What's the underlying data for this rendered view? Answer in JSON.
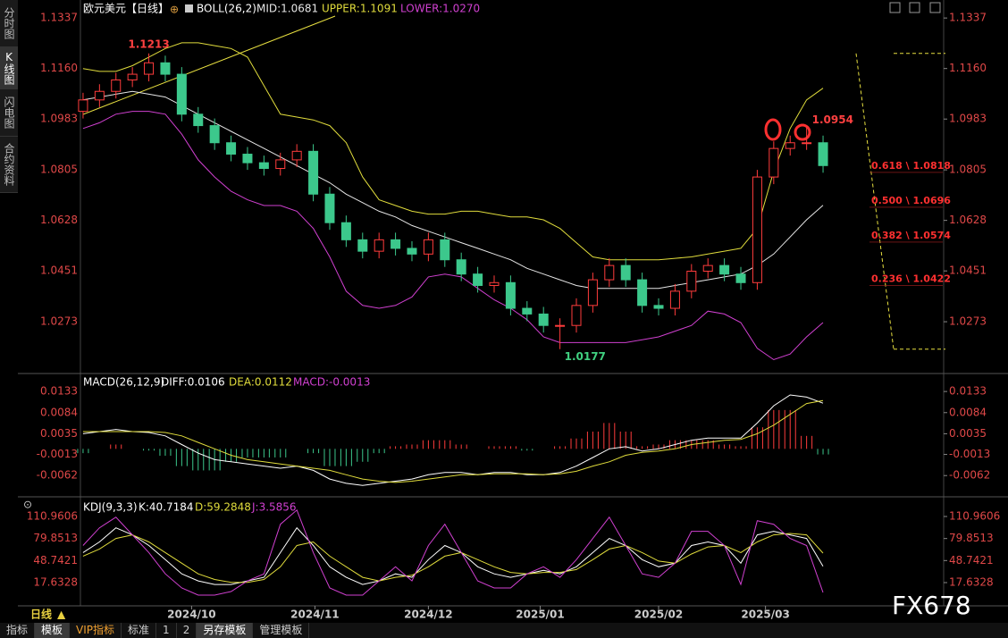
{
  "ui": {
    "sidebar": [
      "分时图",
      "K线图",
      "闪电图",
      "合约资料"
    ],
    "period": "日线",
    "tabs": [
      "指标",
      "模板",
      "VIP指标",
      "标准",
      "1",
      "2",
      "另存模板",
      "管理模板"
    ],
    "watermark": "FX678"
  },
  "chart_data": [
    {
      "type": "candlestick",
      "title": "欧元美元【日线】",
      "indicator": "BOLL(26,2)",
      "categories": [
        null,
        null,
        null,
        null,
        null,
        null,
        null,
        null,
        null,
        null,
        null,
        null,
        null,
        null,
        null,
        null,
        null,
        null,
        null,
        null,
        null,
        null,
        null,
        null,
        null,
        null,
        null,
        null,
        null,
        null,
        null,
        null,
        null,
        null,
        null,
        null,
        null,
        null,
        null,
        null,
        null,
        null,
        null,
        null,
        null,
        null
      ],
      "open": [
        1.101,
        1.105,
        1.108,
        1.112,
        1.114,
        1.118,
        1.114,
        1.1,
        1.096,
        1.09,
        1.086,
        1.083,
        1.081,
        1.084,
        1.087,
        1.072,
        1.062,
        1.056,
        1.052,
        1.056,
        1.053,
        1.051,
        1.056,
        1.049,
        1.044,
        1.04,
        1.041,
        1.032,
        1.03,
        1.026,
        1.026,
        1.033,
        1.042,
        1.047,
        1.042,
        1.033,
        1.032,
        1.038,
        1.045,
        1.047,
        1.044,
        1.041,
        1.078,
        1.088,
        1.09,
        1.09
      ],
      "high": [
        1.1075,
        1.1105,
        1.1145,
        1.1165,
        1.1213,
        1.1205,
        1.1165,
        1.1025,
        1.0985,
        1.0925,
        1.0885,
        1.0855,
        1.0865,
        1.0895,
        1.0895,
        1.0745,
        1.0645,
        1.0585,
        1.0585,
        1.0585,
        1.0555,
        1.0585,
        1.0585,
        1.0515,
        1.0465,
        1.0435,
        1.0435,
        1.0345,
        1.0325,
        1.0285,
        1.0355,
        1.0445,
        1.0495,
        1.0495,
        1.0445,
        1.0355,
        1.0405,
        1.0475,
        1.0495,
        1.0495,
        1.0465,
        1.0805,
        1.0905,
        1.0925,
        1.0954,
        1.0925
      ],
      "low": [
        1.0985,
        1.1025,
        1.1055,
        1.1095,
        1.1115,
        1.1115,
        1.0975,
        1.0935,
        1.0875,
        1.0835,
        1.0805,
        1.0785,
        1.0785,
        1.0815,
        1.0695,
        1.0595,
        1.0535,
        1.0495,
        1.0495,
        1.0505,
        1.0485,
        1.0485,
        1.0465,
        1.0415,
        1.0375,
        1.0375,
        1.0295,
        1.0275,
        1.0235,
        1.0177,
        1.0235,
        1.0305,
        1.0395,
        1.0395,
        1.0305,
        1.0295,
        1.0295,
        1.0355,
        1.0425,
        1.0415,
        1.0385,
        1.0385,
        1.0755,
        1.0855,
        1.0875,
        1.0795
      ],
      "close": [
        1.105,
        1.108,
        1.112,
        1.114,
        1.118,
        1.114,
        1.1,
        1.096,
        1.09,
        1.086,
        1.083,
        1.081,
        1.084,
        1.087,
        1.072,
        1.062,
        1.056,
        1.052,
        1.056,
        1.053,
        1.051,
        1.056,
        1.049,
        1.044,
        1.04,
        1.041,
        1.032,
        1.03,
        1.026,
        1.026,
        1.033,
        1.042,
        1.047,
        1.042,
        1.033,
        1.032,
        1.038,
        1.045,
        1.047,
        1.044,
        1.041,
        1.078,
        1.088,
        1.09,
        1.09,
        1.082
      ],
      "up_color": "#ff3c3c",
      "down_color": "#3cc88c",
      "series": [
        {
          "name": "MID:1.0681",
          "color": "#e6e6e6",
          "values": [
            1.105,
            1.106,
            1.107,
            1.108,
            1.107,
            1.106,
            1.103,
            1.1,
            1.097,
            1.094,
            1.091,
            1.088,
            1.085,
            1.082,
            1.079,
            1.076,
            1.072,
            1.069,
            1.066,
            1.064,
            1.061,
            1.059,
            1.057,
            1.055,
            1.053,
            1.051,
            1.049,
            1.046,
            1.044,
            1.042,
            1.04,
            1.039,
            1.039,
            1.039,
            1.039,
            1.039,
            1.04,
            1.041,
            1.042,
            1.043,
            1.044,
            1.047,
            1.051,
            1.057,
            1.063,
            1.0681
          ]
        },
        {
          "name": "UPPER:1.1091",
          "color": "#e0dc3c",
          "values": [
            1.116,
            1.115,
            1.115,
            1.117,
            1.12,
            1.123,
            1.125,
            1.125,
            1.124,
            1.123,
            1.12,
            1.11,
            1.1,
            1.099,
            1.098,
            1.096,
            1.09,
            1.078,
            1.07,
            1.068,
            1.066,
            1.065,
            1.065,
            1.066,
            1.066,
            1.065,
            1.064,
            1.064,
            1.063,
            1.06,
            1.055,
            1.05,
            1.049,
            1.049,
            1.049,
            1.049,
            1.0495,
            1.05,
            1.051,
            1.052,
            1.053,
            1.06,
            1.08,
            1.095,
            1.105,
            1.1091
          ]
        },
        {
          "name": "LOWER:1.0270",
          "color": "#d040d0",
          "values": [
            1.095,
            1.097,
            1.1,
            1.101,
            1.101,
            1.1,
            1.093,
            1.084,
            1.078,
            1.073,
            1.07,
            1.068,
            1.068,
            1.066,
            1.06,
            1.05,
            1.038,
            1.033,
            1.032,
            1.033,
            1.036,
            1.043,
            1.044,
            1.043,
            1.039,
            1.035,
            1.032,
            1.028,
            1.022,
            1.02,
            1.02,
            1.02,
            1.02,
            1.02,
            1.021,
            1.022,
            1.024,
            1.026,
            1.031,
            1.03,
            1.027,
            1.018,
            1.014,
            1.016,
            1.022,
            1.027
          ]
        }
      ],
      "xlim": [
        -0.16,
        52.28
      ],
      "ylim": [
        1.0101,
        1.1375
      ],
      "yticks": [
        1.1337,
        {
          "value": 1.116,
          "label": "1.1160"
        },
        1.0983,
        1.0805,
        1.0628,
        1.0451,
        1.0273
      ],
      "fib_levels": [
        {
          "value": 1.0818,
          "label": "0.618 \\ 1.0818"
        },
        {
          "value": 1.0696,
          "label": "0.500 \\ 1.0696"
        },
        {
          "value": 1.0574,
          "label": "0.382 \\ 1.0574"
        },
        {
          "value": 1.0422,
          "label": "0.236 \\ 1.0422"
        }
      ]
    },
    {
      "type": "macd",
      "title": "MACD(26,12,9)",
      "ylim": [
        -0.0103,
        0.0154
      ],
      "yticks": [
        0.0133,
        0.0084,
        0.0035,
        -0.0013,
        -0.0062
      ],
      "series": [
        {
          "name": "DIFF:0.0106",
          "color": "#ffffff",
          "values": [
            0.0035,
            0.004,
            0.0045,
            0.004,
            0.0038,
            0.003,
            0.001,
            -0.001,
            -0.0025,
            -0.003,
            -0.0035,
            -0.004,
            -0.0045,
            -0.004,
            -0.005,
            -0.007,
            -0.008,
            -0.0085,
            -0.008,
            -0.0075,
            -0.007,
            -0.006,
            -0.0055,
            -0.0055,
            -0.006,
            -0.0055,
            -0.0055,
            -0.006,
            -0.006,
            -0.0055,
            -0.004,
            -0.002,
            0.0,
            0.0005,
            -0.0005,
            0.0,
            0.001,
            0.002,
            0.0025,
            0.0025,
            0.0025,
            0.006,
            0.01,
            0.0125,
            0.012,
            0.0106
          ]
        },
        {
          "name": "DEA:0.0112",
          "color": "#e0dc3c",
          "values": [
            0.004,
            0.004,
            0.004,
            0.004,
            0.004,
            0.0038,
            0.003,
            0.0015,
            0.0,
            -0.0015,
            -0.0025,
            -0.003,
            -0.0035,
            -0.004,
            -0.0045,
            -0.005,
            -0.006,
            -0.007,
            -0.0075,
            -0.0078,
            -0.0075,
            -0.007,
            -0.0065,
            -0.006,
            -0.006,
            -0.0058,
            -0.0058,
            -0.0058,
            -0.006,
            -0.0058,
            -0.0052,
            -0.004,
            -0.003,
            -0.0015,
            -0.0008,
            -0.0005,
            0.0,
            0.001,
            0.0015,
            0.002,
            0.0022,
            0.0035,
            0.0055,
            0.008,
            0.0105,
            0.0112
          ]
        },
        {
          "name": "MACD:-0.0013",
          "color": "#d040d0",
          "values": [
            -0.001,
            0.0,
            0.001,
            0.0,
            -0.0004,
            -0.0016,
            -0.004,
            -0.005,
            -0.005,
            -0.003,
            -0.002,
            -0.002,
            -0.002,
            0.0,
            -0.001,
            -0.004,
            -0.004,
            -0.003,
            -0.001,
            0.0006,
            0.001,
            0.002,
            0.002,
            0.001,
            0.0,
            0.0006,
            0.0006,
            -0.0004,
            0.0,
            0.0006,
            0.0024,
            0.004,
            0.006,
            0.004,
            0.0006,
            0.001,
            0.002,
            0.002,
            0.002,
            0.001,
            0.0006,
            0.005,
            0.009,
            0.009,
            0.003,
            -0.0013
          ]
        }
      ]
    },
    {
      "type": "kdj",
      "title": "KDJ(9,3,3)",
      "ylim": [
        -11.4,
        129.9
      ],
      "yticks": [
        110.9606,
        79.8513,
        48.7421,
        17.6328
      ],
      "xticks": [
        {
          "value": 6.6,
          "label": "2024/10"
        },
        {
          "value": 14.1,
          "label": "2024/11"
        },
        {
          "value": 21.0,
          "label": "2024/12"
        },
        {
          "value": 27.8,
          "label": "2025/01"
        },
        {
          "value": 35.0,
          "label": "2025/02"
        },
        {
          "value": 41.5,
          "label": "2025/03"
        }
      ],
      "series": [
        {
          "name": "K:40.7184",
          "color": "#ffffff",
          "values": [
            60,
            75,
            95,
            85,
            70,
            50,
            30,
            20,
            15,
            15,
            20,
            25,
            60,
            95,
            70,
            40,
            25,
            15,
            20,
            30,
            25,
            50,
            70,
            60,
            40,
            30,
            25,
            30,
            35,
            30,
            40,
            60,
            80,
            70,
            50,
            40,
            45,
            70,
            75,
            70,
            45,
            85,
            90,
            85,
            80,
            40.7184
          ]
        },
        {
          "name": "D:59.2848",
          "color": "#e0dc3c",
          "values": [
            55,
            65,
            80,
            85,
            75,
            60,
            45,
            30,
            22,
            18,
            18,
            22,
            40,
            70,
            75,
            55,
            40,
            25,
            20,
            25,
            28,
            40,
            55,
            60,
            50,
            40,
            32,
            30,
            32,
            32,
            36,
            50,
            65,
            70,
            60,
            48,
            45,
            58,
            68,
            70,
            60,
            75,
            85,
            87,
            85,
            59.2848
          ]
        },
        {
          "name": "J:3.5856",
          "color": "#d040d0",
          "values": [
            70,
            95,
            110,
            85,
            60,
            30,
            10,
            0,
            0,
            5,
            20,
            30,
            100,
            120,
            60,
            10,
            0,
            0,
            20,
            40,
            20,
            70,
            100,
            60,
            20,
            10,
            10,
            30,
            40,
            25,
            50,
            80,
            110,
            70,
            30,
            25,
            45,
            90,
            90,
            70,
            15,
            105,
            100,
            80,
            70,
            3.5856
          ]
        }
      ]
    }
  ]
}
